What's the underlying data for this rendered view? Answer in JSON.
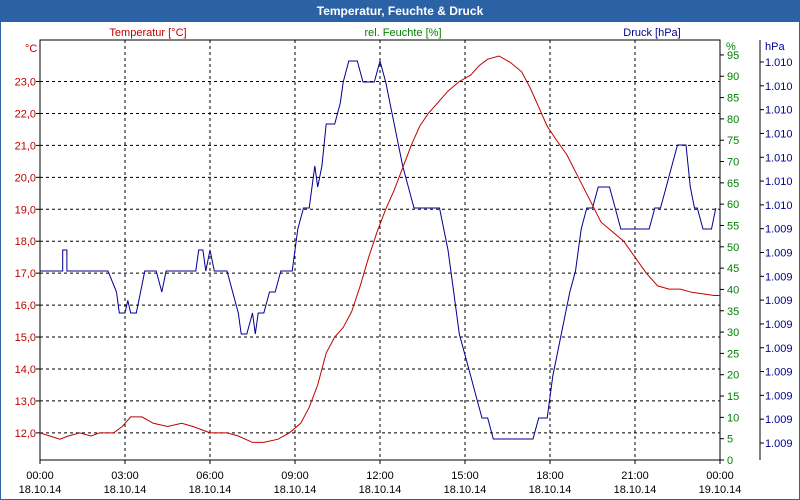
{
  "title": "Temperatur, Feuchte & Druck",
  "colors": {
    "title_bg": "#2b62a6",
    "temperature": "#c00000",
    "humidity": "#008000",
    "pressure": "#000090",
    "grid": "#000000"
  },
  "chart_data": {
    "type": "line",
    "title": "Temperatur, Feuchte & Druck",
    "x_ticks": [
      {
        "time": "00:00",
        "date": "18.10.14"
      },
      {
        "time": "03:00",
        "date": "18.10.14"
      },
      {
        "time": "06:00",
        "date": "18.10.14"
      },
      {
        "time": "09:00",
        "date": "18.10.14"
      },
      {
        "time": "12:00",
        "date": "18.10.14"
      },
      {
        "time": "15:00",
        "date": "18.10.14"
      },
      {
        "time": "18:00",
        "date": "18.10.14"
      },
      {
        "time": "21:00",
        "date": "18.10.14"
      },
      {
        "time": "00:00",
        "date": "19.10.14"
      }
    ],
    "xlim_hours": [
      0,
      24
    ],
    "axes": {
      "temperature": {
        "label": "Temperatur [°C]",
        "unit": "°C",
        "ylim": [
          11.15,
          24.3
        ],
        "ticks": [
          {
            "v": 12.0,
            "label": "12,0"
          },
          {
            "v": 13.0,
            "label": "13,0"
          },
          {
            "v": 14.0,
            "label": "14,0"
          },
          {
            "v": 15.0,
            "label": "15,0"
          },
          {
            "v": 16.0,
            "label": "16,0"
          },
          {
            "v": 17.0,
            "label": "17,0"
          },
          {
            "v": 18.0,
            "label": "18,0"
          },
          {
            "v": 19.0,
            "label": "19,0"
          },
          {
            "v": 20.0,
            "label": "20,0"
          },
          {
            "v": 21.0,
            "label": "21,0"
          },
          {
            "v": 22.0,
            "label": "22,0"
          },
          {
            "v": 23.0,
            "label": "23,0"
          }
        ]
      },
      "humidity": {
        "label": "rel. Feuchte [%]",
        "unit": "%",
        "ylim": [
          0,
          98.5
        ],
        "ticks": [
          0,
          5,
          10,
          15,
          20,
          25,
          30,
          35,
          40,
          45,
          50,
          55,
          60,
          65,
          70,
          75,
          80,
          85,
          90,
          95
        ]
      },
      "pressure": {
        "label": "Druck [hPa]",
        "unit": "hPa",
        "tick_labels": [
          "1.009",
          "1.009",
          "1.009",
          "1.009",
          "1.009",
          "1.009",
          "1.009",
          "1.009",
          "1.009",
          "1.009",
          "1.010",
          "1.010",
          "1.010",
          "1.010",
          "1.010",
          "1.010",
          "1.010"
        ]
      }
    },
    "series": [
      {
        "name": "Temperatur",
        "axis": "temperature",
        "points": [
          [
            0,
            12.0
          ],
          [
            0.7,
            11.8
          ],
          [
            1.0,
            11.9
          ],
          [
            1.4,
            12.0
          ],
          [
            1.8,
            11.9
          ],
          [
            2.1,
            12.0
          ],
          [
            2.6,
            12.0
          ],
          [
            2.9,
            12.2
          ],
          [
            3.2,
            12.5
          ],
          [
            3.6,
            12.5
          ],
          [
            4.0,
            12.3
          ],
          [
            4.5,
            12.2
          ],
          [
            5.0,
            12.3
          ],
          [
            5.4,
            12.2
          ],
          [
            6.0,
            12.0
          ],
          [
            6.6,
            12.0
          ],
          [
            7.0,
            11.9
          ],
          [
            7.5,
            11.7
          ],
          [
            7.9,
            11.7
          ],
          [
            8.4,
            11.8
          ],
          [
            8.8,
            12.0
          ],
          [
            9.2,
            12.3
          ],
          [
            9.5,
            12.8
          ],
          [
            9.8,
            13.5
          ],
          [
            10.1,
            14.5
          ],
          [
            10.4,
            15.0
          ],
          [
            10.7,
            15.3
          ],
          [
            11.0,
            15.8
          ],
          [
            11.3,
            16.6
          ],
          [
            11.6,
            17.5
          ],
          [
            11.9,
            18.3
          ],
          [
            12.2,
            19.0
          ],
          [
            12.5,
            19.6
          ],
          [
            12.8,
            20.3
          ],
          [
            13.1,
            21.0
          ],
          [
            13.4,
            21.6
          ],
          [
            13.7,
            22.0
          ],
          [
            14.0,
            22.3
          ],
          [
            14.4,
            22.7
          ],
          [
            14.8,
            23.0
          ],
          [
            15.2,
            23.2
          ],
          [
            15.5,
            23.5
          ],
          [
            15.8,
            23.7
          ],
          [
            16.2,
            23.8
          ],
          [
            16.6,
            23.6
          ],
          [
            17.0,
            23.3
          ],
          [
            17.3,
            22.8
          ],
          [
            17.6,
            22.2
          ],
          [
            17.9,
            21.6
          ],
          [
            18.2,
            21.2
          ],
          [
            18.6,
            20.7
          ],
          [
            19.0,
            20.0
          ],
          [
            19.4,
            19.3
          ],
          [
            19.8,
            18.6
          ],
          [
            20.2,
            18.3
          ],
          [
            20.6,
            18.0
          ],
          [
            21.0,
            17.5
          ],
          [
            21.4,
            17.0
          ],
          [
            21.8,
            16.6
          ],
          [
            22.2,
            16.5
          ],
          [
            22.6,
            16.5
          ],
          [
            23.0,
            16.4
          ],
          [
            23.4,
            16.35
          ],
          [
            23.8,
            16.3
          ],
          [
            24.0,
            16.3
          ]
        ]
      },
      {
        "name": "Druck",
        "axis": "pressure_scale",
        "ylim": [
          0,
          100
        ],
        "points": [
          [
            0,
            45
          ],
          [
            0.8,
            45
          ],
          [
            0.8,
            50
          ],
          [
            0.95,
            50
          ],
          [
            0.95,
            45
          ],
          [
            2.4,
            45
          ],
          [
            2.7,
            40
          ],
          [
            2.8,
            35
          ],
          [
            3.0,
            35
          ],
          [
            3.1,
            38
          ],
          [
            3.2,
            35
          ],
          [
            3.4,
            35
          ],
          [
            3.7,
            45
          ],
          [
            4.1,
            45
          ],
          [
            4.3,
            40
          ],
          [
            4.45,
            45
          ],
          [
            5.5,
            45
          ],
          [
            5.6,
            50
          ],
          [
            5.75,
            50
          ],
          [
            5.85,
            45
          ],
          [
            6.0,
            50
          ],
          [
            6.15,
            45
          ],
          [
            6.6,
            45
          ],
          [
            7.0,
            35
          ],
          [
            7.1,
            30
          ],
          [
            7.3,
            30
          ],
          [
            7.5,
            35
          ],
          [
            7.6,
            30
          ],
          [
            7.7,
            35
          ],
          [
            7.9,
            35
          ],
          [
            8.1,
            40
          ],
          [
            8.3,
            40
          ],
          [
            8.5,
            45
          ],
          [
            8.9,
            45
          ],
          [
            9.1,
            55
          ],
          [
            9.3,
            60
          ],
          [
            9.5,
            60
          ],
          [
            9.7,
            70
          ],
          [
            9.8,
            65
          ],
          [
            9.95,
            70
          ],
          [
            10.1,
            80
          ],
          [
            10.4,
            80
          ],
          [
            10.6,
            85
          ],
          [
            10.7,
            90
          ],
          [
            10.9,
            95
          ],
          [
            11.2,
            95
          ],
          [
            11.4,
            90
          ],
          [
            11.8,
            90
          ],
          [
            12.0,
            95
          ],
          [
            12.2,
            90
          ],
          [
            12.5,
            80
          ],
          [
            12.8,
            70
          ],
          [
            13.2,
            60
          ],
          [
            13.4,
            60
          ],
          [
            14.1,
            60
          ],
          [
            14.4,
            50
          ],
          [
            14.6,
            40
          ],
          [
            14.8,
            30
          ],
          [
            15.0,
            25
          ],
          [
            15.2,
            20
          ],
          [
            15.4,
            15
          ],
          [
            15.6,
            10
          ],
          [
            15.8,
            10
          ],
          [
            16.0,
            5
          ],
          [
            17.4,
            5
          ],
          [
            17.6,
            10
          ],
          [
            17.9,
            10
          ],
          [
            18.1,
            20
          ],
          [
            18.4,
            30
          ],
          [
            18.7,
            40
          ],
          [
            18.9,
            45
          ],
          [
            19.1,
            55
          ],
          [
            19.3,
            60
          ],
          [
            19.5,
            60
          ],
          [
            19.7,
            65
          ],
          [
            20.1,
            65
          ],
          [
            20.3,
            60
          ],
          [
            20.5,
            55
          ],
          [
            21.5,
            55
          ],
          [
            21.7,
            60
          ],
          [
            21.9,
            60
          ],
          [
            22.1,
            65
          ],
          [
            22.3,
            70
          ],
          [
            22.5,
            75
          ],
          [
            22.8,
            75
          ],
          [
            22.95,
            65
          ],
          [
            23.1,
            60
          ],
          [
            23.2,
            60
          ],
          [
            23.4,
            55
          ],
          [
            23.7,
            55
          ],
          [
            23.85,
            60
          ]
        ]
      }
    ]
  }
}
